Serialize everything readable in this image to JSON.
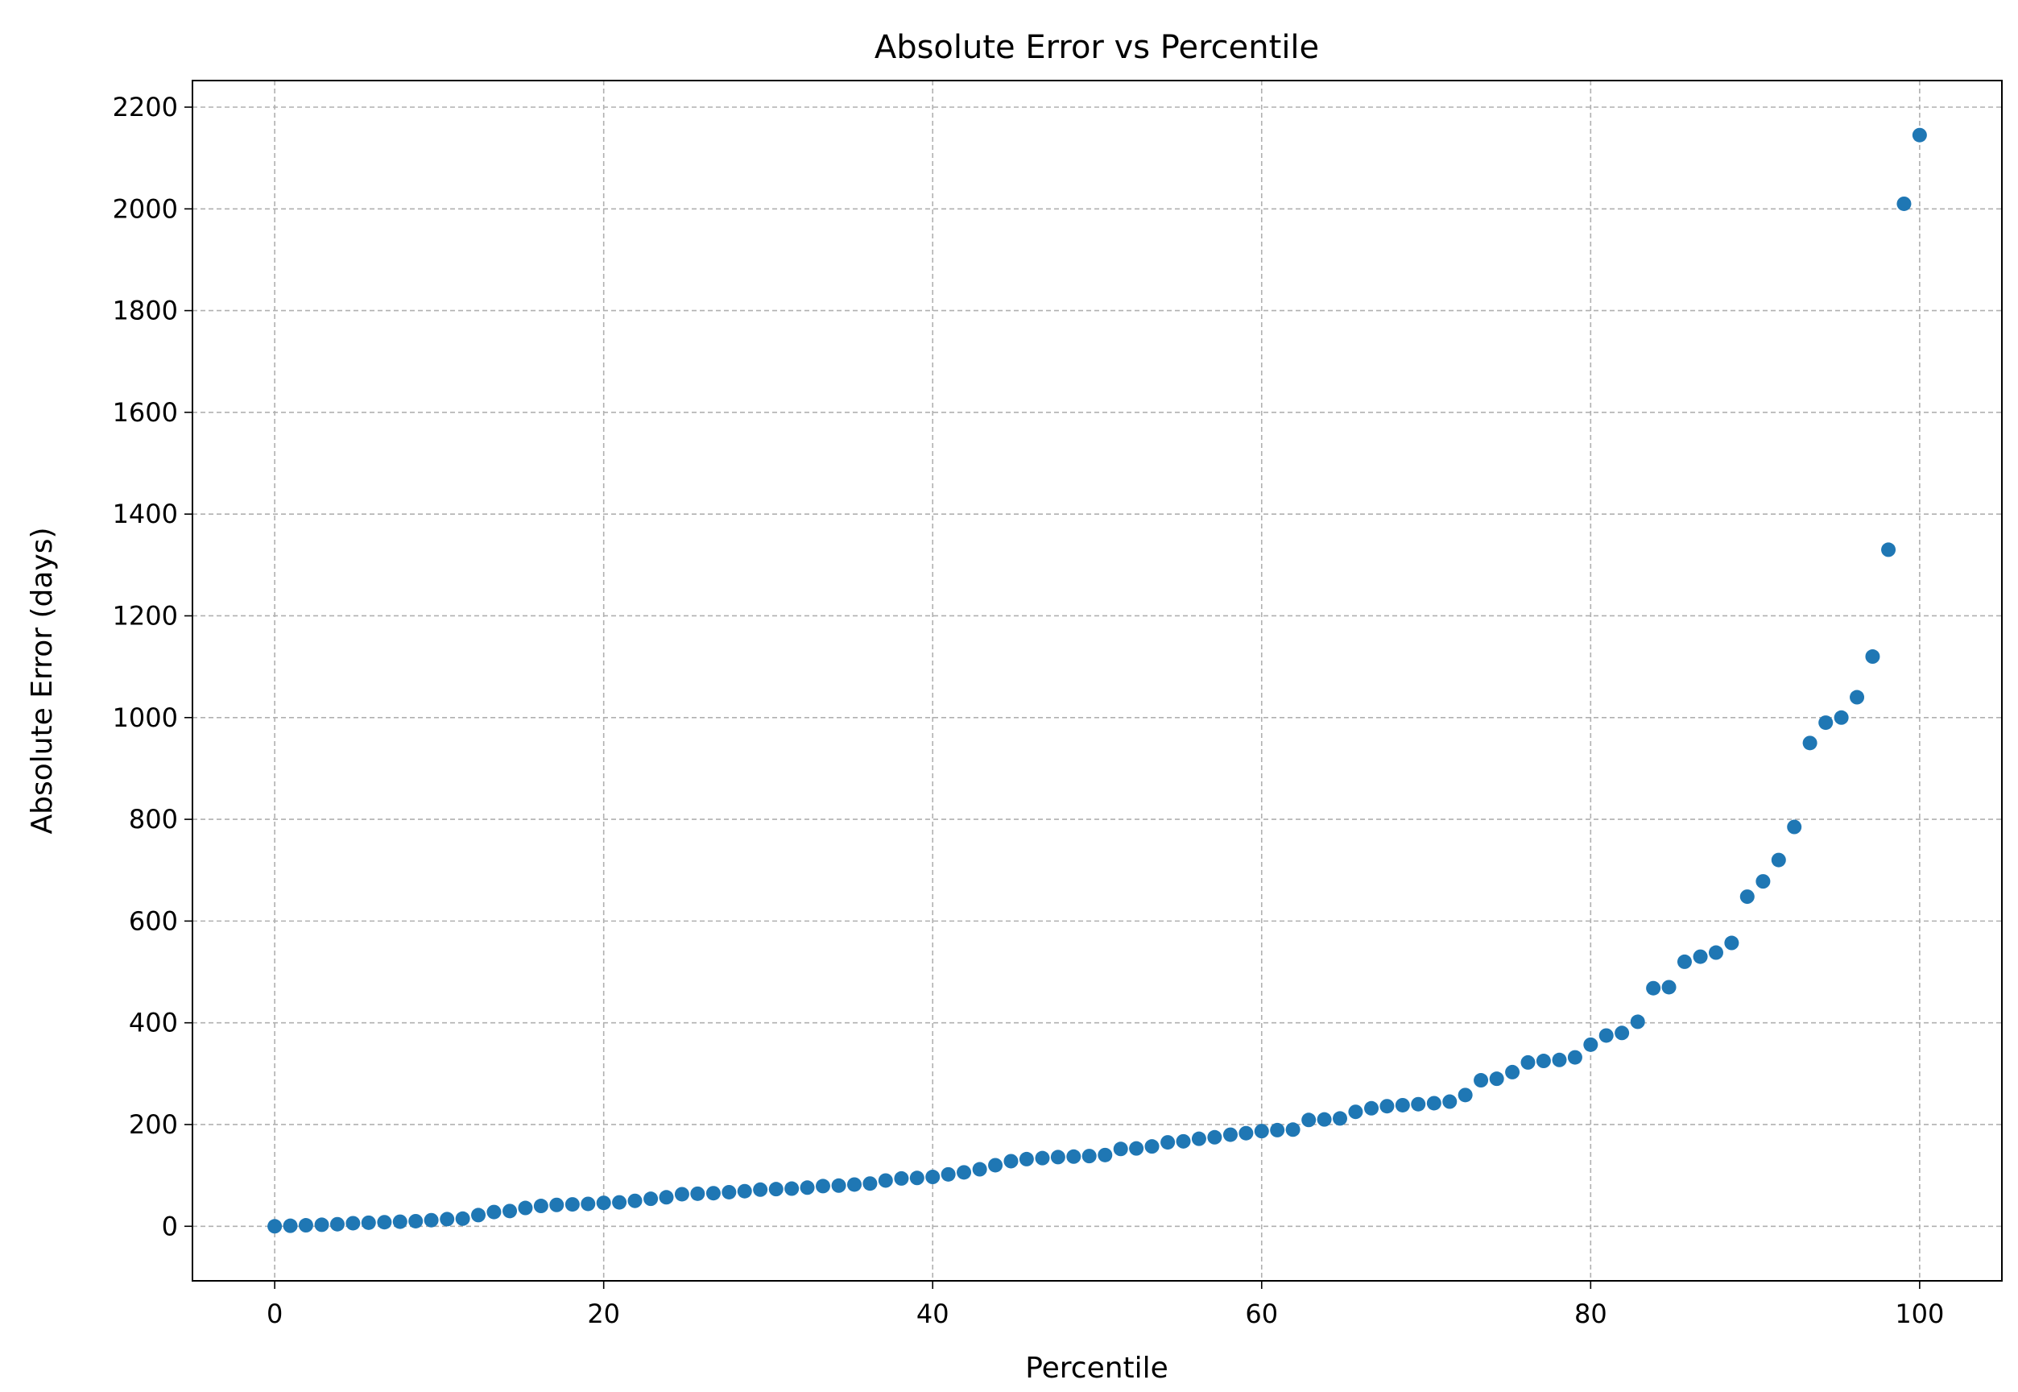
{
  "chart_data": {
    "type": "scatter",
    "title": "Absolute Error vs Percentile",
    "x_label": "Percentile",
    "y_label": "Absolute Error (days)",
    "x": [
      0,
      0.95,
      1.9,
      2.86,
      3.81,
      4.76,
      5.71,
      6.67,
      7.62,
      8.57,
      9.52,
      10.48,
      11.43,
      12.38,
      13.33,
      14.29,
      15.24,
      16.19,
      17.14,
      18.1,
      19.05,
      20,
      20.95,
      21.9,
      22.86,
      23.81,
      24.76,
      25.71,
      26.67,
      27.62,
      28.57,
      29.52,
      30.48,
      31.43,
      32.38,
      33.33,
      34.29,
      35.24,
      36.19,
      37.14,
      38.1,
      39.05,
      40,
      40.95,
      41.9,
      42.86,
      43.81,
      44.76,
      45.71,
      46.67,
      47.62,
      48.57,
      49.52,
      50.48,
      51.43,
      52.38,
      53.33,
      54.29,
      55.24,
      56.19,
      57.14,
      58.1,
      59.05,
      60,
      60.95,
      61.9,
      62.86,
      63.81,
      64.76,
      65.71,
      66.67,
      67.62,
      68.57,
      69.52,
      70.48,
      71.43,
      72.38,
      73.33,
      74.29,
      75.24,
      76.19,
      77.14,
      78.1,
      79.05,
      80,
      80.95,
      81.9,
      82.86,
      83.81,
      84.76,
      85.71,
      86.67,
      87.62,
      88.57,
      89.52,
      90.48,
      91.43,
      92.38,
      93.33,
      94.29,
      95.24,
      96.19,
      97.14,
      98.1,
      99.05,
      100
    ],
    "values": [
      0,
      1,
      2,
      3,
      4,
      6,
      7,
      8,
      9,
      10,
      12,
      14,
      15,
      22,
      28,
      30,
      36,
      40,
      42,
      43,
      44,
      46,
      47,
      50,
      54,
      57,
      63,
      64,
      65,
      67,
      69,
      72,
      73,
      74,
      76,
      79,
      80,
      82,
      84,
      90,
      94,
      95,
      97,
      102,
      106,
      112,
      120,
      128,
      132,
      134,
      136,
      137,
      138,
      140,
      152,
      153,
      157,
      165,
      167,
      172,
      175,
      180,
      183,
      187,
      189,
      190,
      209,
      210,
      212,
      225,
      232,
      236,
      238,
      240,
      242,
      245,
      258,
      287,
      290,
      303,
      322,
      325,
      327,
      332,
      357,
      375,
      380,
      402,
      468,
      470,
      520,
      530,
      538,
      557,
      648,
      678,
      720,
      785,
      950,
      990,
      1000,
      1040,
      1120,
      1330,
      2010,
      2145
    ],
    "color": "#1f77b4",
    "xlim": [
      -5,
      105
    ],
    "ylim": [
      -107.25,
      2252.25
    ],
    "xticks": [
      0,
      20,
      40,
      60,
      80,
      100
    ],
    "yticks": [
      0,
      200,
      400,
      600,
      800,
      1000,
      1200,
      1400,
      1600,
      1800,
      2000,
      2200
    ],
    "grid": true
  }
}
